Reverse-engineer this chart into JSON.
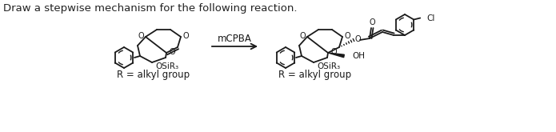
{
  "title_text": "Draw a stepwise mechanism for the following reaction.",
  "title_fontsize": 9.5,
  "title_color": "#222222",
  "background_color": "#ffffff",
  "arrow_label": "mCPBA",
  "arrow_label_fontsize": 8.5,
  "r_label_1": "R = alkyl group",
  "r_label_2": "R = alkyl group",
  "r_label_fontsize": 8.5,
  "bond_color": "#1a1a1a"
}
